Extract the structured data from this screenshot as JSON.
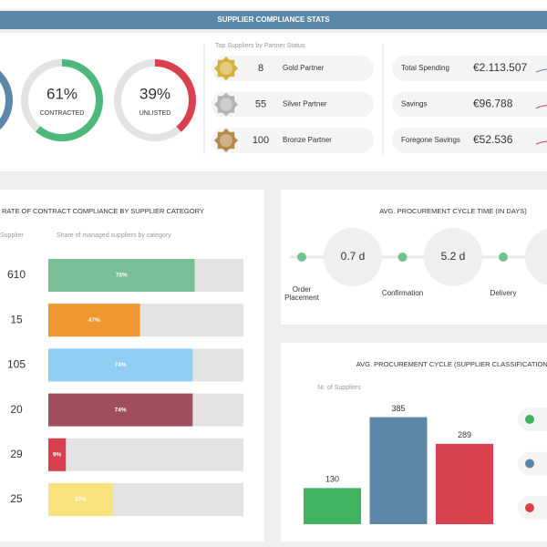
{
  "header": {
    "title": "SUPPLIER COMPLIANCE STATS"
  },
  "donuts": [
    {
      "value": 61,
      "label": "61%",
      "caption": "CONTRACTED",
      "color": "#4cb87a"
    },
    {
      "value": 39,
      "label": "39%",
      "caption": "UNLISTED",
      "color": "#d9414f"
    }
  ],
  "partners": {
    "title": "Top Suppliers by Partner Status",
    "rows": [
      {
        "count": 8,
        "label": "Gold Partner",
        "color": "#d4b13a"
      },
      {
        "count": 55,
        "label": "Silver Partner",
        "color": "#b3b3b3"
      },
      {
        "count": 100,
        "label": "Bronze Partner",
        "color": "#b5894a"
      }
    ]
  },
  "spending": {
    "rows": [
      {
        "label": "Total Spending",
        "value": "€2.113.507"
      },
      {
        "label": "Savings",
        "value": "€96.788"
      },
      {
        "label": "Foregone Savings",
        "value": "€52.536"
      }
    ]
  },
  "compliance": {
    "title": "RATE OF CONTRACT COMPLIANCE BY SUPPLIER CATEGORY",
    "columns": [
      "Supplier",
      "Share of managed suppliers by category"
    ],
    "rows": [
      {
        "count": 610,
        "share": 75,
        "share_label": "75%",
        "color": "#7bbf96"
      },
      {
        "count": 15,
        "share": 47,
        "share_label": "47%",
        "color": "#f0962e"
      },
      {
        "count": 105,
        "share": 74,
        "share_label": "74%",
        "color": "#8fcdf3"
      },
      {
        "count": 20,
        "share": 74,
        "share_label": "74%",
        "color": "#a04d5e"
      },
      {
        "count": 29,
        "share": 9,
        "share_label": "9%",
        "color": "#d9404f"
      },
      {
        "count": 25,
        "share": 33,
        "share_label": "33%",
        "color": "#f9e27a"
      }
    ]
  },
  "cycle_time": {
    "title": "AVG. PROCUREMENT CYCLE TIME (IN DAYS)",
    "stages": [
      "Order Placement",
      "Confirmation",
      "Delivery"
    ],
    "durations": [
      "0.7 d",
      "5.2 d"
    ]
  },
  "classification": {
    "title": "AVG. PROCUREMENT CYCLE (SUPPLIER CLASSIFICATION)",
    "axis_label": "Nr. of Suppliers",
    "ylim": [
      0,
      400
    ],
    "values": [
      130,
      385,
      289
    ],
    "colors": [
      "#3fb362",
      "#5b87a8",
      "#d9414f"
    ]
  }
}
